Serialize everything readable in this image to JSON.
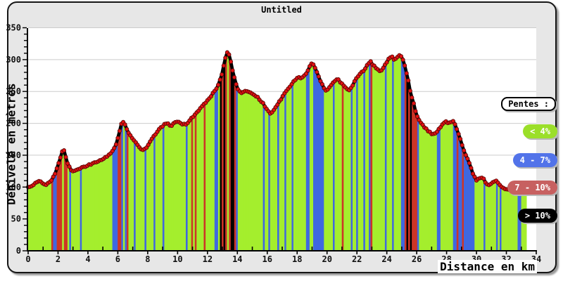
{
  "window": {
    "title": "Untitled"
  },
  "chart": {
    "title": "Untitled",
    "x_axis_label": "Distance en km",
    "y_axis_label": "Dénivelé en mètres",
    "legend": {
      "title": "Pentes :",
      "items": [
        {
          "label": "< 4%",
          "color": "#9bdf29",
          "meaning": "slope under 4 percent"
        },
        {
          "label": "4 - 7%",
          "color": "#5273e9",
          "meaning": "slope 4 to 7 percent"
        },
        {
          "label": "7 - 10%",
          "color": "#c76060",
          "meaning": "slope 7 to 10 percent"
        },
        {
          "label": "> 10%",
          "color": "#000000",
          "meaning": "slope over 10 percent"
        }
      ]
    }
  },
  "chart_data": {
    "type": "area",
    "title": "Untitled",
    "xlabel": "Distance en km",
    "ylabel": "Dénivelé en mètres",
    "xlim": [
      0,
      34
    ],
    "ylim": [
      0,
      350
    ],
    "xticks": [
      0,
      2,
      4,
      6,
      8,
      10,
      12,
      14,
      16,
      18,
      20,
      22,
      24,
      26,
      28,
      30,
      32,
      34
    ],
    "yticks": [
      0,
      50,
      100,
      150,
      200,
      250,
      300,
      350
    ],
    "grid": "horizontal",
    "grid_color": "#cccccc",
    "plot_bg": "#ffffff",
    "outer_bg": "#e7e7e7",
    "slope_palette": [
      "#a4ee2d",
      "#3f68e0",
      "#cd3526",
      "#000000"
    ],
    "slope_thresholds_pct": [
      4,
      7,
      10
    ],
    "marker_color": "#e31212",
    "marker_stroke": "#5d0606",
    "line_color": "#000000",
    "bar_step_km": 0.12,
    "profile": [
      [
        0,
        100
      ],
      [
        0.25,
        102
      ],
      [
        0.5,
        106
      ],
      [
        0.75,
        109
      ],
      [
        1.0,
        106
      ],
      [
        1.25,
        104
      ],
      [
        1.5,
        109
      ],
      [
        1.75,
        118
      ],
      [
        2.0,
        134
      ],
      [
        2.2,
        150
      ],
      [
        2.35,
        160
      ],
      [
        2.5,
        150
      ],
      [
        2.65,
        136
      ],
      [
        2.85,
        127
      ],
      [
        3.05,
        124
      ],
      [
        3.3,
        127
      ],
      [
        3.6,
        131
      ],
      [
        3.9,
        133
      ],
      [
        4.2,
        136
      ],
      [
        4.5,
        139
      ],
      [
        4.8,
        141
      ],
      [
        5.1,
        145
      ],
      [
        5.4,
        150
      ],
      [
        5.7,
        158
      ],
      [
        5.95,
        172
      ],
      [
        6.15,
        190
      ],
      [
        6.3,
        204
      ],
      [
        6.45,
        200
      ],
      [
        6.6,
        191
      ],
      [
        6.8,
        182
      ],
      [
        7.0,
        175
      ],
      [
        7.25,
        168
      ],
      [
        7.5,
        161
      ],
      [
        7.7,
        157
      ],
      [
        7.9,
        162
      ],
      [
        8.1,
        169
      ],
      [
        8.35,
        178
      ],
      [
        8.6,
        186
      ],
      [
        8.85,
        193
      ],
      [
        9.1,
        198
      ],
      [
        9.35,
        200
      ],
      [
        9.55,
        196
      ],
      [
        9.8,
        201
      ],
      [
        10.05,
        203
      ],
      [
        10.3,
        199
      ],
      [
        10.55,
        198
      ],
      [
        10.8,
        205
      ],
      [
        11.05,
        211
      ],
      [
        11.3,
        217
      ],
      [
        11.6,
        225
      ],
      [
        11.9,
        233
      ],
      [
        12.2,
        242
      ],
      [
        12.5,
        251
      ],
      [
        12.75,
        261
      ],
      [
        12.95,
        276
      ],
      [
        13.1,
        292
      ],
      [
        13.25,
        308
      ],
      [
        13.35,
        314
      ],
      [
        13.5,
        304
      ],
      [
        13.65,
        287
      ],
      [
        13.85,
        266
      ],
      [
        14.05,
        253
      ],
      [
        14.25,
        247
      ],
      [
        14.5,
        252
      ],
      [
        14.75,
        250
      ],
      [
        15.0,
        247
      ],
      [
        15.25,
        243
      ],
      [
        15.5,
        237
      ],
      [
        15.75,
        230
      ],
      [
        16.0,
        221
      ],
      [
        16.2,
        215
      ],
      [
        16.4,
        220
      ],
      [
        16.65,
        228
      ],
      [
        16.9,
        237
      ],
      [
        17.15,
        246
      ],
      [
        17.4,
        254
      ],
      [
        17.65,
        262
      ],
      [
        17.9,
        269
      ],
      [
        18.1,
        273
      ],
      [
        18.3,
        270
      ],
      [
        18.55,
        276
      ],
      [
        18.8,
        287
      ],
      [
        19.0,
        296
      ],
      [
        19.2,
        288
      ],
      [
        19.45,
        273
      ],
      [
        19.7,
        259
      ],
      [
        19.95,
        250
      ],
      [
        20.2,
        258
      ],
      [
        20.45,
        266
      ],
      [
        20.7,
        270
      ],
      [
        20.95,
        263
      ],
      [
        21.2,
        256
      ],
      [
        21.45,
        252
      ],
      [
        21.7,
        259
      ],
      [
        21.95,
        270
      ],
      [
        22.2,
        278
      ],
      [
        22.45,
        283
      ],
      [
        22.7,
        292
      ],
      [
        22.9,
        297
      ],
      [
        23.1,
        291
      ],
      [
        23.35,
        284
      ],
      [
        23.6,
        282
      ],
      [
        23.85,
        291
      ],
      [
        24.1,
        300
      ],
      [
        24.3,
        306
      ],
      [
        24.5,
        299
      ],
      [
        24.7,
        303
      ],
      [
        24.9,
        307
      ],
      [
        25.1,
        299
      ],
      [
        25.25,
        287
      ],
      [
        25.4,
        271
      ],
      [
        25.55,
        253
      ],
      [
        25.7,
        239
      ],
      [
        25.85,
        226
      ],
      [
        26.0,
        213
      ],
      [
        26.2,
        202
      ],
      [
        26.45,
        196
      ],
      [
        26.7,
        190
      ],
      [
        26.95,
        184
      ],
      [
        27.2,
        183
      ],
      [
        27.45,
        190
      ],
      [
        27.7,
        198
      ],
      [
        27.95,
        204
      ],
      [
        28.15,
        200
      ],
      [
        28.4,
        204
      ],
      [
        28.6,
        196
      ],
      [
        28.8,
        183
      ],
      [
        29.0,
        169
      ],
      [
        29.2,
        155
      ],
      [
        29.45,
        141
      ],
      [
        29.7,
        125
      ],
      [
        29.95,
        111
      ],
      [
        30.2,
        113
      ],
      [
        30.4,
        116
      ],
      [
        30.6,
        107
      ],
      [
        30.85,
        102
      ],
      [
        31.1,
        108
      ],
      [
        31.3,
        111
      ],
      [
        31.5,
        104
      ],
      [
        31.75,
        99
      ],
      [
        32.0,
        97
      ],
      [
        32.3,
        96
      ],
      [
        32.6,
        95
      ],
      [
        32.9,
        93
      ],
      [
        33.15,
        92
      ],
      [
        33.35,
        91
      ]
    ]
  }
}
